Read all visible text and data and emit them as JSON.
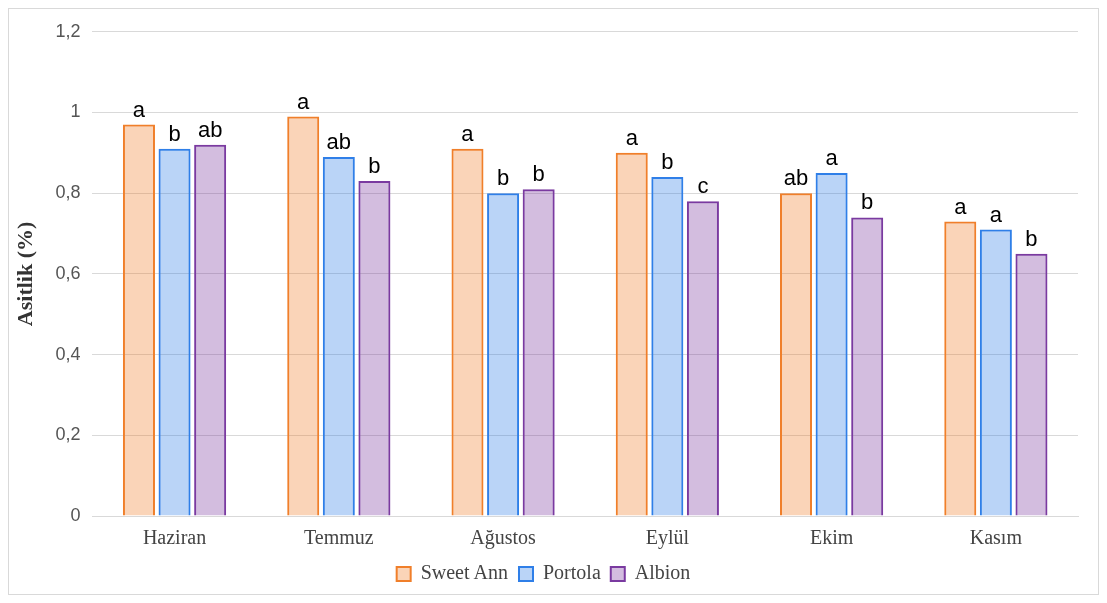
{
  "chart_data": {
    "type": "bar",
    "ylabel": "Asitlik (%)",
    "categories": [
      "Haziran",
      "Temmuz",
      "Ağustos",
      "Eylül",
      "Ekim",
      "Kasım"
    ],
    "series": [
      {
        "name": "Sweet Ann",
        "color": "#f07f2a",
        "values": [
          0.97,
          0.99,
          0.91,
          0.9,
          0.8,
          0.73
        ],
        "value_labels": [
          "a",
          "a",
          "a",
          "a",
          "ab",
          "a"
        ]
      },
      {
        "name": "Portola",
        "color": "#2f7fe8",
        "values": [
          0.91,
          0.89,
          0.8,
          0.84,
          0.85,
          0.71
        ],
        "value_labels": [
          "b",
          "ab",
          "b",
          "b",
          "a",
          "a"
        ]
      },
      {
        "name": "Albion",
        "color": "#7a3aa0",
        "values": [
          0.92,
          0.83,
          0.81,
          0.78,
          0.74,
          0.65
        ],
        "value_labels": [
          "ab",
          "b",
          "b",
          "c",
          "b",
          "b"
        ]
      }
    ],
    "ylim": [
      0,
      1.2
    ],
    "yticks": [
      0,
      {
        "value": 0.2,
        "label": "0,2"
      },
      {
        "value": 0.4,
        "label": "0,4"
      },
      {
        "value": 0.6,
        "label": "0,6"
      },
      {
        "value": 0.8,
        "label": "0,8"
      },
      1,
      {
        "value": 1.2,
        "label": "1,2"
      }
    ],
    "grid": "y",
    "legend": "bottom"
  }
}
